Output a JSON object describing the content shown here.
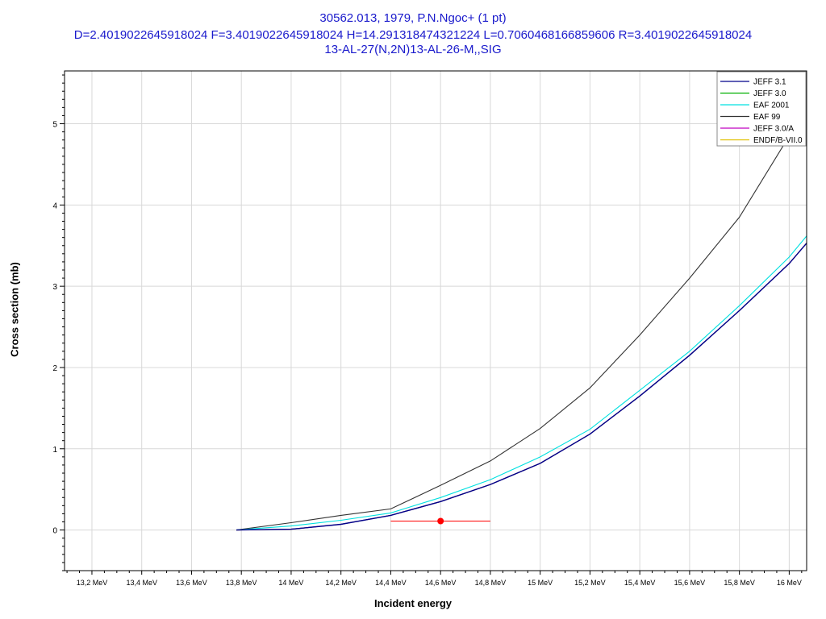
{
  "chart_data": {
    "type": "line",
    "title": "30562.013, 1979, P.N.Ngoc+ (1 pt)",
    "subtitle": "D=2.4019022645918024 F=3.4019022645918024 H=14.291318474321224 L=0.7060468166859606 R=3.4019022645918024",
    "reaction": "13-AL-27(N,2N)13-AL-26-M,,SIG",
    "xlabel": "Incident energy",
    "ylabel": "Cross section (mb)",
    "xlim": [
      13.09,
      16.07
    ],
    "ylim": [
      -0.5,
      5.65
    ],
    "x_tick_values": [
      13.2,
      13.4,
      13.6,
      13.8,
      14.0,
      14.2,
      14.4,
      14.6,
      14.8,
      15.0,
      15.2,
      15.4,
      15.6,
      15.8,
      16.0
    ],
    "x_tick_labels": [
      "13,2 MeV",
      "13,4 MeV",
      "13,6 MeV",
      "13,8 MeV",
      "14 MeV",
      "14,2 MeV",
      "14,4 MeV",
      "14,6 MeV",
      "14,8 MeV",
      "15 MeV",
      "15,2 MeV",
      "15,4 MeV",
      "15,6 MeV",
      "15,8 MeV",
      "16 MeV"
    ],
    "y_tick_values": [
      0,
      1,
      2,
      3,
      4,
      5
    ],
    "y_tick_labels": [
      "0",
      "1",
      "2",
      "3",
      "4",
      "5"
    ],
    "grid": true,
    "legend_position": "top-right",
    "series": [
      {
        "name": "JEFF 3.1",
        "color": "#00008b",
        "x": [
          13.78,
          14.0,
          14.2,
          14.4,
          14.6,
          14.8,
          15.0,
          15.2,
          15.4,
          15.6,
          15.8,
          16.0,
          16.07
        ],
        "y": [
          0,
          0.01,
          0.07,
          0.18,
          0.35,
          0.56,
          0.82,
          1.18,
          1.65,
          2.15,
          2.7,
          3.28,
          3.53
        ]
      },
      {
        "name": "JEFF 3.0",
        "color": "#00b000",
        "x": [
          13.78,
          14.0,
          14.2,
          14.4,
          14.6,
          14.8,
          15.0,
          15.2,
          15.4,
          15.6,
          15.8,
          16.0,
          16.07
        ],
        "y": [
          0,
          0.01,
          0.07,
          0.18,
          0.35,
          0.56,
          0.82,
          1.18,
          1.65,
          2.15,
          2.7,
          3.28,
          3.53
        ]
      },
      {
        "name": "EAF 2001",
        "color": "#00e0e0",
        "x": [
          13.78,
          14.0,
          14.2,
          14.4,
          14.6,
          14.8,
          15.0,
          15.2,
          15.4,
          15.6,
          15.8,
          16.0,
          16.07
        ],
        "y": [
          0,
          0.05,
          0.12,
          0.21,
          0.4,
          0.62,
          0.9,
          1.24,
          1.72,
          2.2,
          2.76,
          3.36,
          3.62
        ]
      },
      {
        "name": "EAF 99",
        "color": "#333333",
        "x": [
          13.78,
          14.0,
          14.2,
          14.4,
          14.6,
          14.8,
          15.0,
          15.2,
          15.4,
          15.6,
          15.8,
          16.0
        ],
        "y": [
          0,
          0.09,
          0.18,
          0.26,
          0.55,
          0.85,
          1.25,
          1.75,
          2.4,
          3.1,
          3.85,
          4.85
        ]
      },
      {
        "name": "JEFF 3.0/A",
        "color": "#c000c0",
        "x": [
          13.78,
          14.0,
          14.2,
          14.4,
          14.6,
          14.8,
          15.0,
          15.2,
          15.4,
          15.6,
          15.8,
          16.0,
          16.07
        ],
        "y": [
          0,
          0.01,
          0.07,
          0.18,
          0.35,
          0.56,
          0.82,
          1.18,
          1.65,
          2.15,
          2.7,
          3.28,
          3.53
        ]
      },
      {
        "name": "ENDF/B-VII.0",
        "color": "#e0c000",
        "x": [
          13.78,
          14.0,
          14.2,
          14.4,
          14.6,
          14.8,
          15.0,
          15.2,
          15.4,
          15.6,
          15.8,
          16.0,
          16.07
        ],
        "y": [
          0,
          0.01,
          0.07,
          0.18,
          0.35,
          0.56,
          0.82,
          1.18,
          1.65,
          2.15,
          2.7,
          3.28,
          3.53
        ]
      }
    ],
    "experimental_points": [
      {
        "x": 14.6,
        "y": 0.11,
        "x_min": 14.4,
        "x_max": 14.8,
        "color": "#ff0000"
      }
    ]
  }
}
